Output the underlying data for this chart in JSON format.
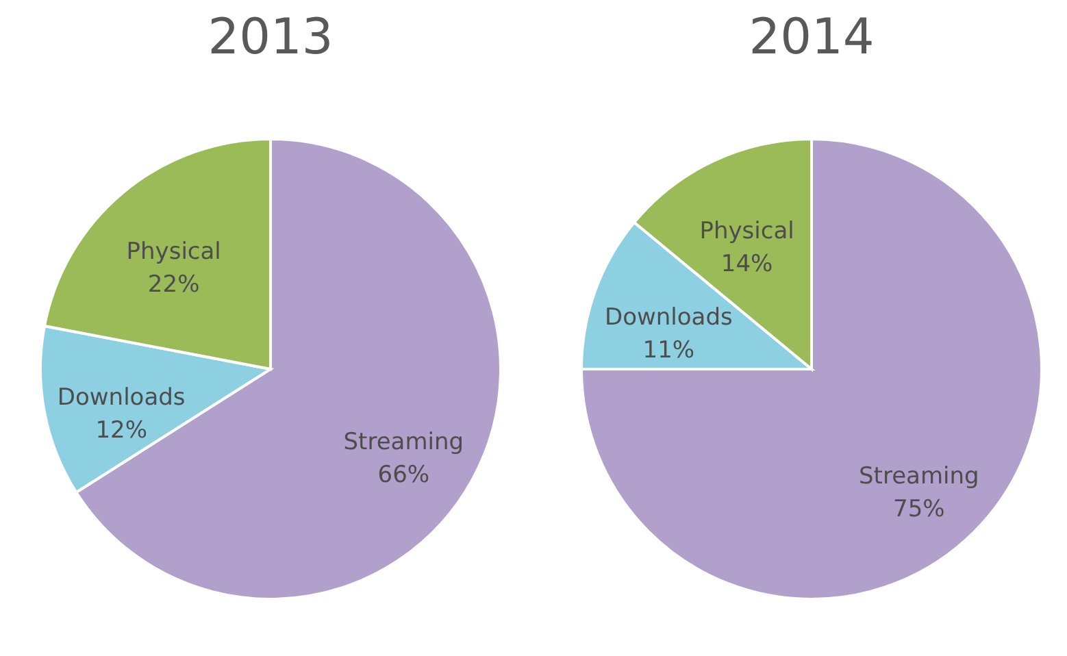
{
  "chart_data": [
    {
      "type": "pie",
      "title": "2013",
      "categories": [
        "Streaming",
        "Downloads",
        "Physical"
      ],
      "values": [
        66,
        12,
        22
      ],
      "value_labels": [
        "66%",
        "12%",
        "22%"
      ],
      "colors": [
        "#b1a0cc",
        "#8dd0e2",
        "#9bbb59"
      ]
    },
    {
      "type": "pie",
      "title": "2014",
      "categories": [
        "Streaming",
        "Downloads",
        "Physical"
      ],
      "values": [
        75,
        11,
        14
      ],
      "value_labels": [
        "75%",
        "11%",
        "14%"
      ],
      "colors": [
        "#b1a0cc",
        "#8dd0e2",
        "#9bbb59"
      ]
    }
  ]
}
